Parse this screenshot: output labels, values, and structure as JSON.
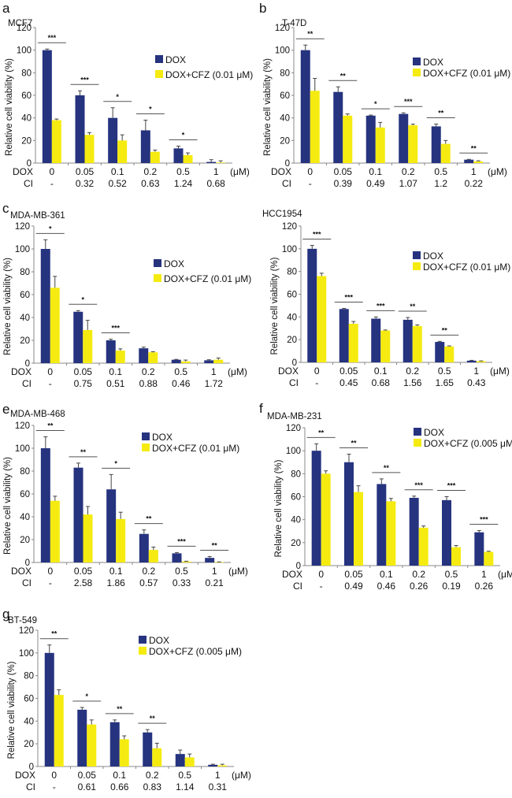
{
  "colors": {
    "dox": "#26337f",
    "combo": "#f5eb10",
    "axis": "#888888",
    "sig_line": "#555555"
  },
  "chart_data": [
    {
      "panel": "a",
      "type": "bar",
      "title": "MCF7",
      "ylabel": "Relative cell viability (%)",
      "ylim": [
        0,
        120
      ],
      "yticks": [
        0,
        20,
        40,
        60,
        80,
        100,
        120
      ],
      "row_labels": [
        "DOX",
        "CI"
      ],
      "unit": "(μM)",
      "categories": [
        "0",
        "0.05",
        "0.1",
        "0.2",
        "0.5",
        "1"
      ],
      "ci": [
        "-",
        "0.32",
        "0.52",
        "0.63",
        "1.24",
        "0.68"
      ],
      "legend": [
        "DOX",
        "DOX+CFZ (0.01 μM)"
      ],
      "legend_position": "right",
      "series": [
        {
          "name": "DOX",
          "values": [
            100,
            60,
            40,
            29,
            13,
            1
          ],
          "errors": [
            1,
            4,
            9,
            9,
            2,
            2
          ]
        },
        {
          "name": "DOX+CFZ (0.01 μM)",
          "values": [
            38,
            25,
            20,
            10,
            7,
            0.5
          ],
          "errors": [
            1,
            2,
            5,
            1.5,
            2,
            1.5
          ]
        }
      ],
      "significance": [
        "***",
        "***",
        "*",
        "*",
        "*",
        ""
      ]
    },
    {
      "panel": "b",
      "type": "bar",
      "title": "T-47D",
      "ylabel": "Relative cell viability (%)",
      "ylim": [
        0,
        120
      ],
      "yticks": [
        0,
        20,
        40,
        60,
        80,
        100,
        120
      ],
      "row_labels": [
        "DOX",
        "CI"
      ],
      "unit": "(μM)",
      "categories": [
        "0",
        "0.05",
        "0.1",
        "0.2",
        "0.5",
        "1"
      ],
      "ci": [
        "-",
        "0.39",
        "0.49",
        "1.07",
        "1.2",
        "0.22"
      ],
      "legend": [
        "DOX",
        "DOX+CFZ (0.01 μM)"
      ],
      "legend_position": "right",
      "series": [
        {
          "name": "DOX",
          "values": [
            100,
            63,
            42,
            43.5,
            32.5,
            3
          ],
          "errors": [
            4.5,
            4.5,
            0.5,
            1,
            2,
            0.3
          ]
        },
        {
          "name": "DOX+CFZ (0.01 μM)",
          "values": [
            64,
            42,
            31.5,
            33.5,
            17,
            1.5
          ],
          "errors": [
            11,
            1.5,
            4.5,
            1,
            3,
            0.5
          ]
        }
      ],
      "significance": [
        "**",
        "**",
        "*",
        "***",
        "**",
        "**"
      ]
    },
    {
      "panel": "c",
      "type": "bar",
      "title": "MDA-MB-361",
      "ylabel": "Relative cell viability (%)",
      "ylim": [
        0,
        120
      ],
      "yticks": [
        0,
        20,
        40,
        60,
        80,
        100,
        120
      ],
      "row_labels": [
        "DOX",
        "CI"
      ],
      "unit": "(μM)",
      "categories": [
        "0",
        "0.05",
        "0.1",
        "0.2",
        "0.5",
        "1"
      ],
      "ci": [
        "-",
        "0.75",
        "0.51",
        "0.88",
        "0.46",
        "1.72"
      ],
      "legend": [
        "DOX",
        "DOX+CFZ (0.01 μM)"
      ],
      "legend_position": "right",
      "series": [
        {
          "name": "DOX",
          "values": [
            100,
            45,
            20,
            13,
            3,
            2.5
          ],
          "errors": [
            8,
            1,
            1,
            1,
            0.3,
            0.5
          ]
        },
        {
          "name": "DOX+CFZ (0.01 μM)",
          "values": [
            66,
            29,
            11,
            9.5,
            1.5,
            3
          ],
          "errors": [
            10,
            8.5,
            1.5,
            0.5,
            1.2,
            1.5
          ]
        }
      ],
      "significance": [
        "*",
        "*",
        "***",
        "",
        "",
        ""
      ]
    },
    {
      "panel": "d",
      "type": "bar",
      "title": "HCC1954",
      "ylabel": "Relative cell viability (%)",
      "ylim": [
        0,
        120
      ],
      "yticks": [
        0,
        20,
        40,
        60,
        80,
        100,
        120
      ],
      "row_labels": [
        "DOX",
        "CI"
      ],
      "unit": "(μM)",
      "categories": [
        "0",
        "0.05",
        "0.1",
        "0.2",
        "0.5",
        "1"
      ],
      "ci": [
        "-",
        "0.45",
        "0.68",
        "1.56",
        "1.65",
        "0.43"
      ],
      "legend": [
        "DOX",
        "DOX+CFZ (0.01 μM)"
      ],
      "legend_position": "right",
      "series": [
        {
          "name": "DOX",
          "values": [
            100,
            47,
            38.5,
            37.5,
            18,
            1.5
          ],
          "errors": [
            3,
            0.5,
            1.5,
            2,
            0.5,
            0.3
          ]
        },
        {
          "name": "DOX+CFZ (0.01 μM)",
          "values": [
            76,
            34,
            28,
            32,
            14,
            1
          ],
          "errors": [
            2.5,
            2,
            0.5,
            1,
            0.5,
            0.3
          ]
        }
      ],
      "significance": [
        "***",
        "***",
        "***",
        "**",
        "**",
        ""
      ]
    },
    {
      "panel": "e",
      "type": "bar",
      "title": "MDA-MB-468",
      "ylabel": "Relative cell viability (%)",
      "ylim": [
        0,
        120
      ],
      "yticks": [
        0,
        20,
        40,
        60,
        80,
        100,
        120
      ],
      "row_labels": [
        "DOX",
        "CI"
      ],
      "unit": "(μM)",
      "categories": [
        "0",
        "0.05",
        "0.1",
        "0.2",
        "0.5",
        "1"
      ],
      "ci": [
        "-",
        "2.58",
        "1.86",
        "0.57",
        "0.33",
        "0.21"
      ],
      "legend": [
        "DOX",
        "DOX+CFZ (0.01 μM)"
      ],
      "legend_position": "top-right",
      "series": [
        {
          "name": "DOX",
          "values": [
            100,
            83,
            64,
            25,
            8,
            4
          ],
          "errors": [
            10,
            4,
            13,
            3.5,
            0.7,
            1.2
          ]
        },
        {
          "name": "DOX+CFZ (0.01 μM)",
          "values": [
            54,
            42,
            38,
            11,
            0.8,
            0.3
          ],
          "errors": [
            4,
            7,
            6,
            2.5,
            0.3,
            0.2
          ]
        }
      ],
      "significance": [
        "**",
        "**",
        "*",
        "**",
        "***",
        "**"
      ]
    },
    {
      "panel": "f",
      "type": "bar",
      "title": "MDA-MB-231",
      "ylabel": "Relative cell viability (%)",
      "ylim": [
        0,
        120
      ],
      "yticks": [
        0,
        20,
        40,
        60,
        80,
        100,
        120
      ],
      "row_labels": [
        "DOX",
        "CI"
      ],
      "unit": "(μM)",
      "categories": [
        "0",
        "0.05",
        "0.1",
        "0.2",
        "0.5",
        "1"
      ],
      "ci": [
        "-",
        "0.49",
        "0.46",
        "0.26",
        "0.19",
        "0.26"
      ],
      "legend": [
        "DOX",
        "DOX+CFZ (0.005 μM)"
      ],
      "legend_position": "top-right",
      "series": [
        {
          "name": "DOX",
          "values": [
            100,
            90,
            71,
            59,
            57,
            29
          ],
          "errors": [
            6,
            7,
            4.5,
            1.5,
            3,
            1.5
          ]
        },
        {
          "name": "DOX+CFZ (0.005 μM)",
          "values": [
            80,
            64,
            56,
            33,
            16,
            12
          ],
          "errors": [
            2.5,
            5.5,
            2.5,
            1.5,
            1.5,
            0.5
          ]
        }
      ],
      "significance": [
        "**",
        "**",
        "**",
        "***",
        "***",
        "***"
      ]
    },
    {
      "panel": "g",
      "type": "bar",
      "title": "BT-549",
      "ylabel": "Relative cell viability (%)",
      "ylim": [
        0,
        120
      ],
      "yticks": [
        0,
        20,
        40,
        60,
        80,
        100,
        120
      ],
      "row_labels": [
        "DOX",
        "CI"
      ],
      "unit": "(μM)",
      "categories": [
        "0",
        "0.05",
        "0.1",
        "0.2",
        "0.5",
        "1"
      ],
      "ci": [
        "-",
        "0.61",
        "0.66",
        "0.83",
        "1.14",
        "0.31"
      ],
      "legend": [
        "DOX",
        "DOX+CFZ (0.005 μM)"
      ],
      "legend_position": "top-right",
      "series": [
        {
          "name": "DOX",
          "values": [
            100,
            50,
            39,
            30,
            11,
            1.5
          ],
          "errors": [
            7,
            2,
            2,
            2.5,
            3.5,
            0.5
          ]
        },
        {
          "name": "DOX+CFZ (0.005 μM)",
          "values": [
            63,
            37,
            24,
            16,
            8,
            1
          ],
          "errors": [
            4.5,
            4,
            3,
            4.5,
            3,
            1
          ]
        }
      ],
      "significance": [
        "**",
        "*",
        "**",
        "**",
        "",
        ""
      ]
    }
  ]
}
